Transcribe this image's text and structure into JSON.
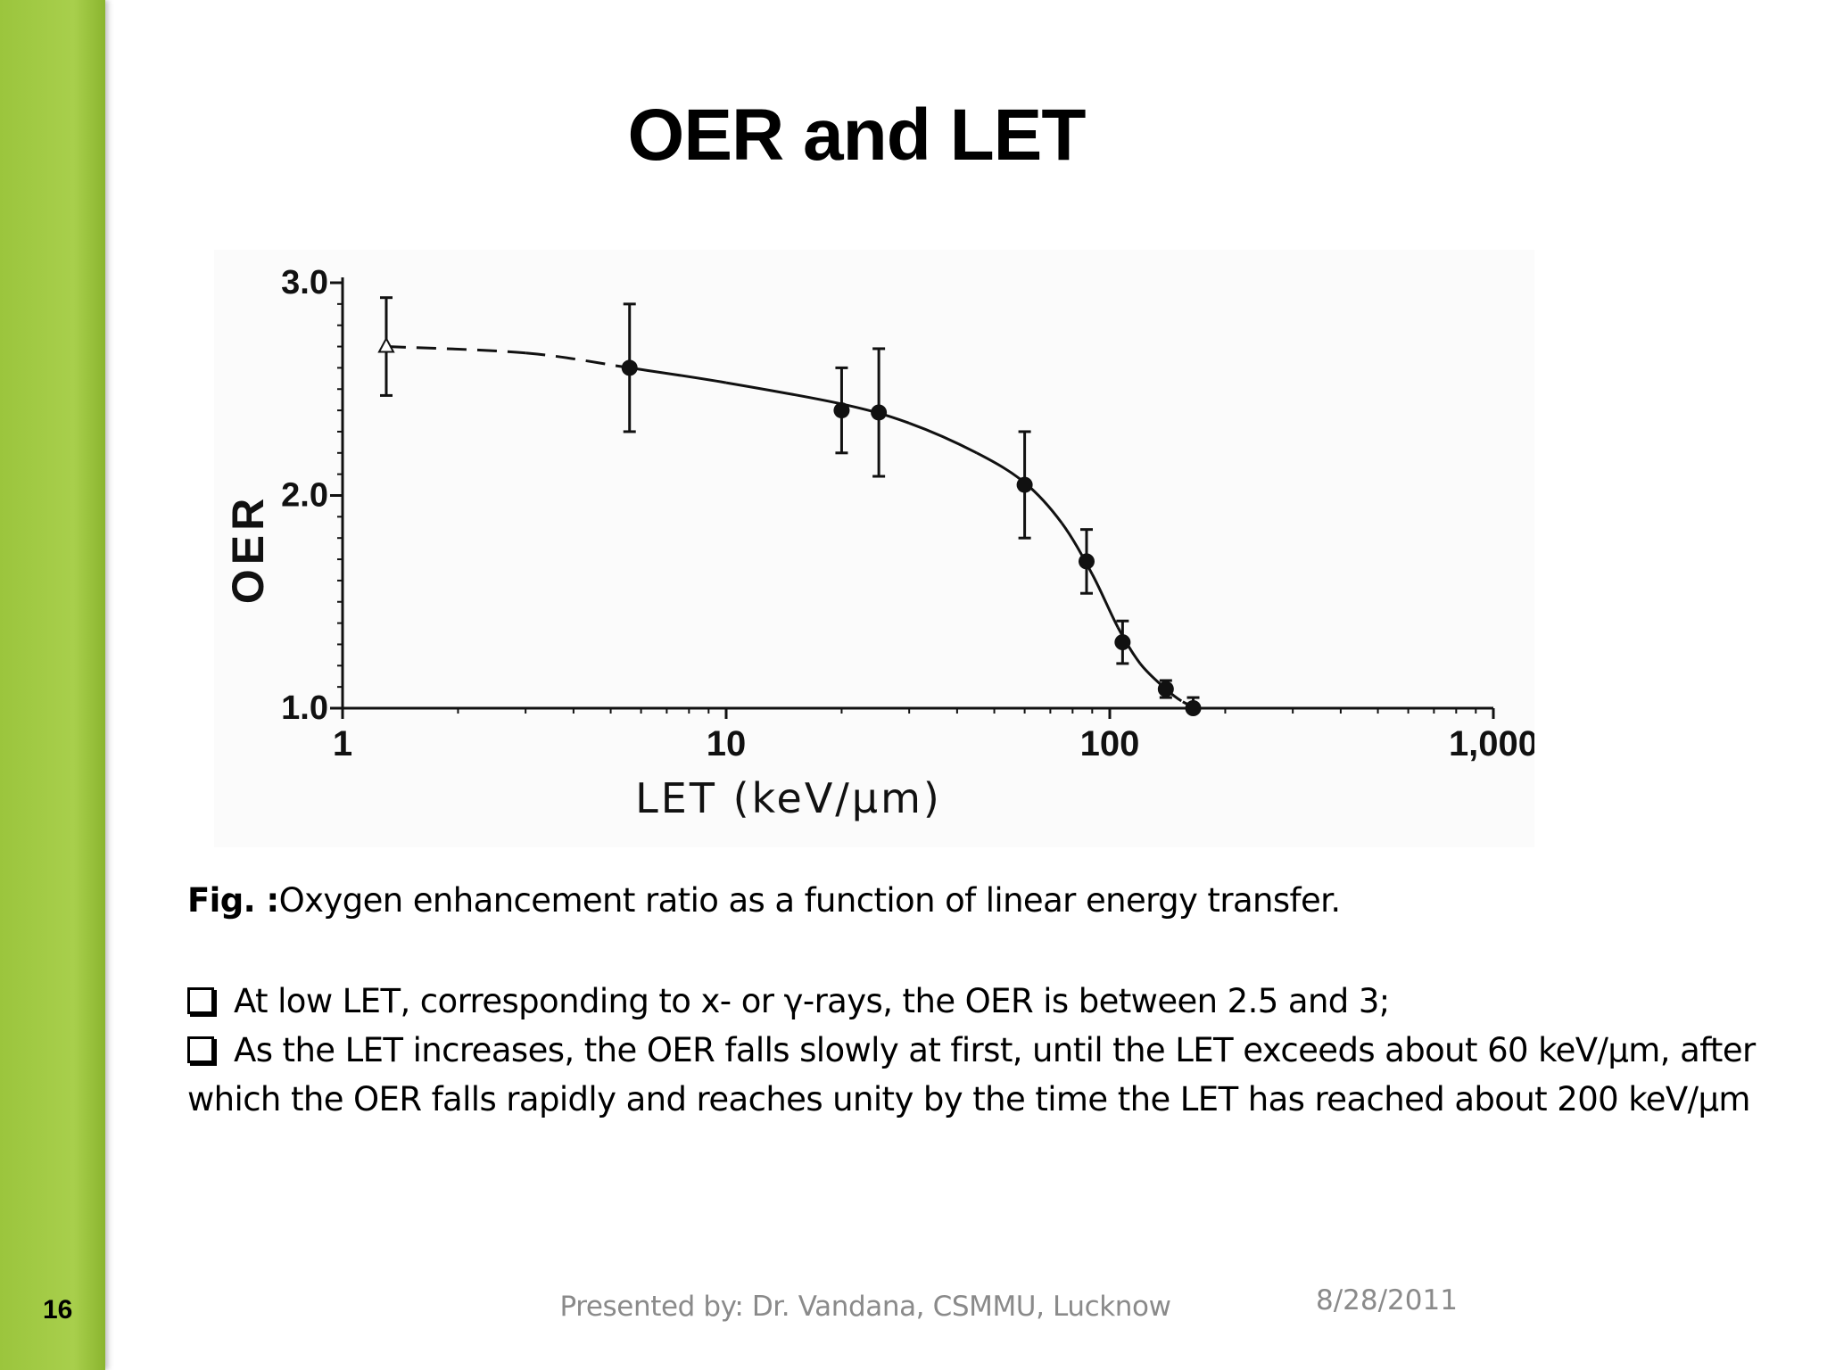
{
  "slide": {
    "title": "OER and LET",
    "number": "16",
    "caption_prefix": "Fig. :",
    "caption_text": "Oxygen enhancement ratio as a function of linear energy transfer.",
    "bullet_1": "At low LET, corresponding to x- or γ-rays, the OER is between 2.5 and 3;",
    "bullet_2": "As the LET increases, the OER falls slowly at first, until the LET exceeds about 60 keV/µm, after which the OER falls rapidly and reaches unity by the time the LET has reached about 200 keV/µm",
    "footer_presenter": "Presented by: Dr. Vandana, CSMMU, Lucknow",
    "footer_date": "8/28/2011"
  },
  "chart_data": {
    "type": "scatter",
    "xlabel": "LET (keV/µm)",
    "ylabel": "OER",
    "xscale": "log",
    "xlim": [
      1,
      1000
    ],
    "ylim": [
      1.0,
      3.0
    ],
    "xticks": [
      1,
      10,
      100,
      1000
    ],
    "xtick_labels": [
      "1",
      "10",
      "100",
      "1,000"
    ],
    "yticks": [
      1.0,
      2.0,
      3.0
    ],
    "ytick_labels": [
      "1.0",
      "2.0",
      "3.0"
    ],
    "series": [
      {
        "marker": "open-triangle",
        "points": [
          {
            "x": 1.3,
            "y": 2.7,
            "err": 0.23
          }
        ]
      },
      {
        "marker": "filled-circle",
        "points": [
          {
            "x": 5.6,
            "y": 2.6,
            "err": 0.3
          },
          {
            "x": 20,
            "y": 2.4,
            "err": 0.2
          },
          {
            "x": 25,
            "y": 2.39,
            "err": 0.3
          },
          {
            "x": 60,
            "y": 2.05,
            "err": 0.25
          },
          {
            "x": 87,
            "y": 1.69,
            "err": 0.15
          },
          {
            "x": 108,
            "y": 1.31,
            "err": 0.1
          },
          {
            "x": 140,
            "y": 1.09,
            "err": 0.04
          },
          {
            "x": 165,
            "y": 1.0,
            "err": 0.05
          }
        ]
      }
    ],
    "fit_curve": {
      "dashed_segments": [
        [
          1.3,
          5.6
        ],
        [
          140,
          170
        ]
      ],
      "points": [
        [
          1.3,
          2.7
        ],
        [
          3,
          2.67
        ],
        [
          5.6,
          2.6
        ],
        [
          10,
          2.53
        ],
        [
          20,
          2.43
        ],
        [
          30,
          2.34
        ],
        [
          45,
          2.2
        ],
        [
          60,
          2.06
        ],
        [
          75,
          1.87
        ],
        [
          90,
          1.63
        ],
        [
          105,
          1.38
        ],
        [
          120,
          1.21
        ],
        [
          140,
          1.09
        ],
        [
          155,
          1.03
        ],
        [
          170,
          1.0
        ]
      ]
    }
  }
}
